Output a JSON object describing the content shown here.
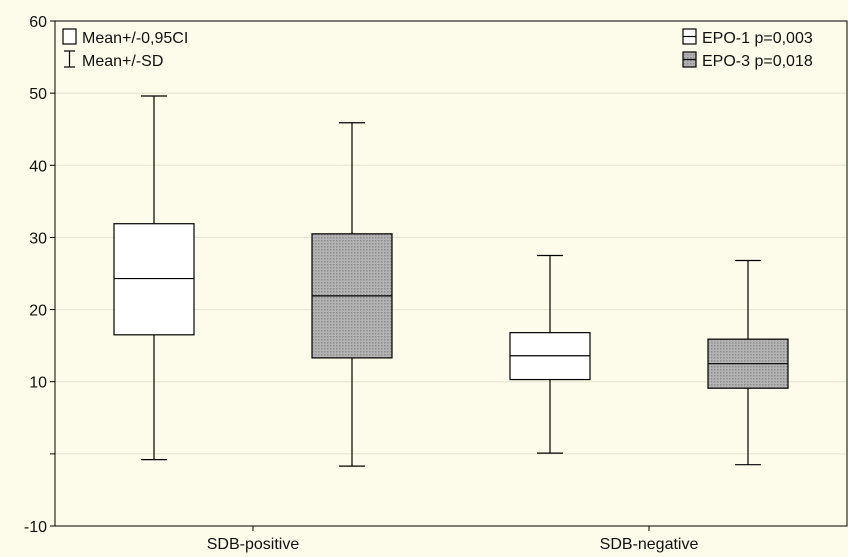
{
  "chart_data": {
    "type": "boxplot",
    "categories": [
      "SDB-positive",
      "SDB-negative"
    ],
    "series": [
      {
        "name": "EPO-1 p=0,003",
        "color": "#ffffff",
        "pattern": "none",
        "boxes": [
          {
            "category": "SDB-positive",
            "whisker_low": -0.8,
            "box_low": 16.5,
            "mean": 24.3,
            "box_high": 31.9,
            "whisker_high": 49.6
          },
          {
            "category": "SDB-negative",
            "whisker_low": 0.1,
            "box_low": 10.3,
            "mean": 13.6,
            "box_high": 16.8,
            "whisker_high": 27.5
          }
        ]
      },
      {
        "name": "EPO-3 p=0,018",
        "color": "#a9a9a9",
        "pattern": "dotted-gray",
        "boxes": [
          {
            "category": "SDB-positive",
            "whisker_low": -1.7,
            "box_low": 13.3,
            "mean": 21.9,
            "box_high": 30.5,
            "whisker_high": 45.9
          },
          {
            "category": "SDB-negative",
            "whisker_low": -1.5,
            "box_low": 9.1,
            "mean": 12.5,
            "box_high": 15.9,
            "whisker_high": 26.8
          }
        ]
      }
    ],
    "y_ticks": [
      {
        "value": -10,
        "label": "-10"
      },
      {
        "value": 0,
        "label": ""
      },
      {
        "value": 10,
        "label": "10"
      },
      {
        "value": 20,
        "label": "20"
      },
      {
        "value": 30,
        "label": "30"
      },
      {
        "value": 40,
        "label": "40"
      },
      {
        "value": 50,
        "label": "50"
      },
      {
        "value": 60,
        "label": "60"
      }
    ],
    "ylim": [
      -10,
      60
    ],
    "grid": true,
    "legend_left": {
      "position": "top-left",
      "box_label": "Mean+/-0,95CI",
      "whisker_label": "Mean+/-SD"
    },
    "legend_right": {
      "position": "top-right"
    },
    "title": "",
    "xlabel": "",
    "ylabel": ""
  }
}
